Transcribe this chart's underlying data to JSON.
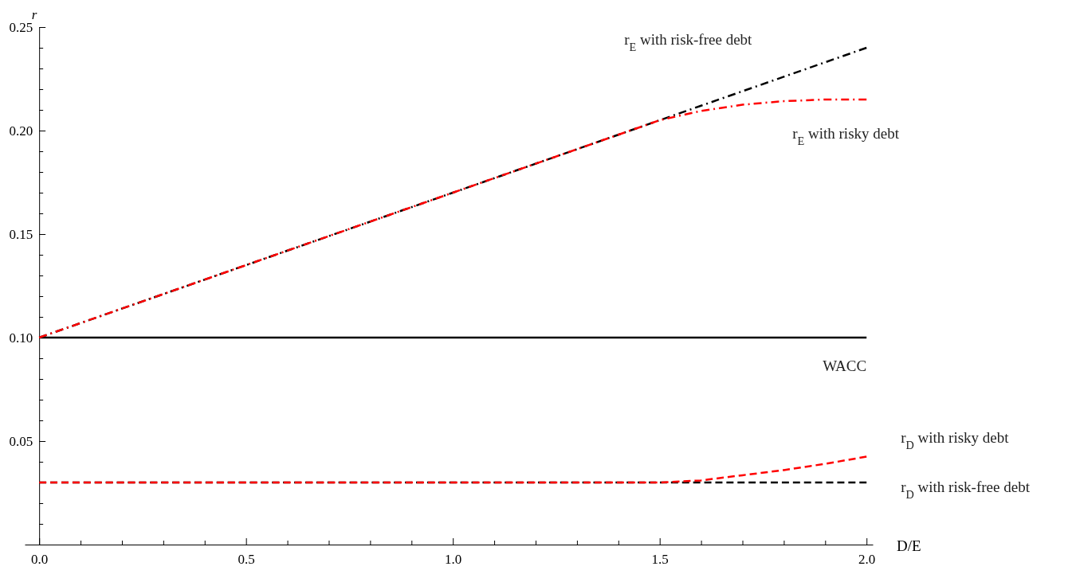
{
  "chart_data": {
    "type": "line",
    "xlabel": "D/E",
    "ylabel": "r",
    "x": [
      0,
      0.5,
      1,
      1.5,
      1.6,
      1.7,
      1.8,
      1.9,
      2.0
    ],
    "xlim": [
      -0.035,
      2.015
    ],
    "ylim": [
      0,
      0.25
    ],
    "xticks": [
      {
        "value": 0,
        "label": "0.0"
      },
      {
        "value": 0.1,
        "label": null
      },
      {
        "value": 0.2,
        "label": null
      },
      {
        "value": 0.3,
        "label": null
      },
      {
        "value": 0.4,
        "label": null
      },
      {
        "value": 0.5,
        "label": "0.5"
      },
      {
        "value": 0.6,
        "label": null
      },
      {
        "value": 0.7,
        "label": null
      },
      {
        "value": 0.8,
        "label": null
      },
      {
        "value": 0.9,
        "label": null
      },
      {
        "value": 1.0,
        "label": "1.0"
      },
      {
        "value": 1.1,
        "label": null
      },
      {
        "value": 1.2,
        "label": null
      },
      {
        "value": 1.3,
        "label": null
      },
      {
        "value": 1.4,
        "label": null
      },
      {
        "value": 1.5,
        "label": "1.5"
      },
      {
        "value": 1.6,
        "label": null
      },
      {
        "value": 1.7,
        "label": null
      },
      {
        "value": 1.8,
        "label": null
      },
      {
        "value": 1.9,
        "label": null
      },
      {
        "value": 2.0,
        "label": "2.0"
      }
    ],
    "yticks": [
      {
        "value": 0.01,
        "label": null
      },
      {
        "value": 0.02,
        "label": null
      },
      {
        "value": 0.03,
        "label": null
      },
      {
        "value": 0.04,
        "label": null
      },
      {
        "value": 0.05,
        "label": "0.05"
      },
      {
        "value": 0.06,
        "label": null
      },
      {
        "value": 0.07,
        "label": null
      },
      {
        "value": 0.08,
        "label": null
      },
      {
        "value": 0.09,
        "label": null
      },
      {
        "value": 0.1,
        "label": "0.10"
      },
      {
        "value": 0.11,
        "label": null
      },
      {
        "value": 0.12,
        "label": null
      },
      {
        "value": 0.13,
        "label": null
      },
      {
        "value": 0.14,
        "label": null
      },
      {
        "value": 0.15,
        "label": "0.15"
      },
      {
        "value": 0.16,
        "label": null
      },
      {
        "value": 0.17,
        "label": null
      },
      {
        "value": 0.18,
        "label": null
      },
      {
        "value": 0.19,
        "label": null
      },
      {
        "value": 0.2,
        "label": "0.20"
      },
      {
        "value": 0.21,
        "label": null
      },
      {
        "value": 0.22,
        "label": null
      },
      {
        "value": 0.23,
        "label": null
      },
      {
        "value": 0.24,
        "label": null
      },
      {
        "value": 0.25,
        "label": "0.25"
      }
    ],
    "grid": false,
    "marker": "none",
    "series": [
      {
        "name": "r$_{E}$ with risk-free debt",
        "color": "#000000",
        "line_style": "dashdot",
        "values": [
          0.1,
          0.135,
          0.17,
          0.205,
          0.212,
          0.219,
          0.226,
          0.233,
          0.24
        ]
      },
      {
        "name": "WACC",
        "color": "#000000",
        "line_style": "solid",
        "values": [
          0.1,
          0.1,
          0.1,
          0.1,
          0.1,
          0.1,
          0.1,
          0.1,
          0.1
        ]
      },
      {
        "name": "r$_{D}$ with risk-free debt",
        "color": "#000000",
        "line_style": "dashed",
        "values": [
          0.03,
          0.03,
          0.03,
          0.03,
          0.03,
          0.03,
          0.03,
          0.03,
          0.03
        ]
      },
      {
        "name": "r$_{E}$ with risky debt",
        "color": "#ff0000",
        "line_style": "dashdot",
        "values": [
          0.1,
          0.135,
          0.17,
          0.205,
          0.2095,
          0.2125,
          0.2142,
          0.215,
          0.215
        ]
      },
      {
        "name": "r$_{D}$ with risky debt",
        "color": "#ff0000",
        "line_style": "dashed",
        "values": [
          0.03,
          0.03,
          0.03,
          0.03,
          0.031,
          0.0335,
          0.036,
          0.039,
          0.0425
        ]
      }
    ]
  }
}
